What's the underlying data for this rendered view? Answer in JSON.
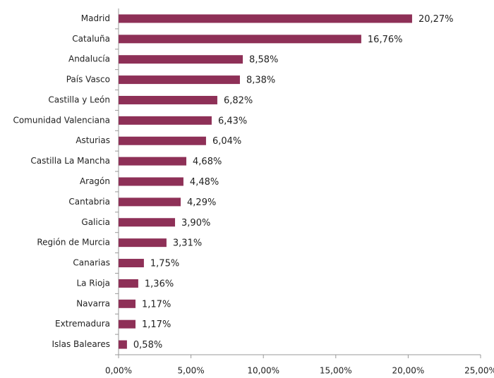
{
  "chart_data": {
    "type": "bar",
    "orientation": "horizontal",
    "categories": [
      "Madrid",
      "Cataluña",
      "Andalucía",
      "País Vasco",
      "Castilla y León",
      "Comunidad Valenciana",
      "Asturias",
      "Castilla La Mancha",
      "Aragón",
      "Cantabria",
      "Galicia",
      "Región de Murcia",
      "Canarias",
      "La Rioja",
      "Navarra",
      "Extremadura",
      "Islas Baleares"
    ],
    "values": [
      20.27,
      16.76,
      8.58,
      8.38,
      6.82,
      6.43,
      6.04,
      4.68,
      4.48,
      4.29,
      3.9,
      3.31,
      1.75,
      1.36,
      1.17,
      1.17,
      0.58
    ],
    "value_labels": [
      "20,27%",
      "16,76%",
      "8,58%",
      "8,38%",
      "6,82%",
      "6,43%",
      "6,04%",
      "4,68%",
      "4,48%",
      "4,29%",
      "3,90%",
      "3,31%",
      "1,75%",
      "1,36%",
      "1,17%",
      "1,17%",
      "0,58%"
    ],
    "color": "#8e3057",
    "xlim": [
      0,
      25
    ],
    "xticks": [
      {
        "value": 0,
        "label": "0,00%"
      },
      {
        "value": 5,
        "label": "5,00%"
      },
      {
        "value": 10,
        "label": "10,00%"
      },
      {
        "value": 15,
        "label": "15,00%"
      },
      {
        "value": 20,
        "label": "20,00%"
      },
      {
        "value": 25,
        "label": "25,00%"
      }
    ],
    "grid": false
  }
}
